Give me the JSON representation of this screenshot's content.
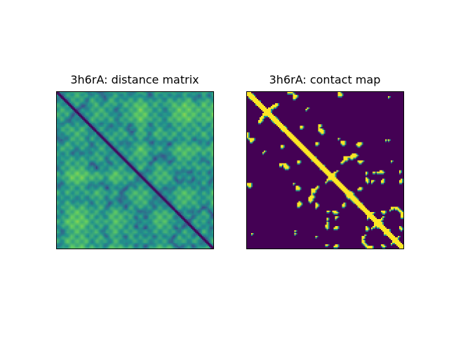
{
  "figure": {
    "colormap": "viridis",
    "background": "#ffffff"
  },
  "chart_data": [
    {
      "type": "heatmap",
      "title": "3h6rA: distance matrix",
      "xlabel": "",
      "ylabel": "",
      "axes_ticks": "none",
      "colormap": "viridis",
      "description_of_values": "symmetric pairwise residue distance; minimum along the main diagonal"
    },
    {
      "type": "heatmap",
      "title": "3h6rA: contact map",
      "xlabel": "",
      "ylabel": "",
      "axes_ticks": "none",
      "colors": {
        "contact": "#fde725",
        "no_contact": "#440154",
        "edge": "#21918c"
      },
      "description_of_values": "binary contact matrix; contacts along the main diagonal plus scattered off-diagonal clusters"
    }
  ]
}
